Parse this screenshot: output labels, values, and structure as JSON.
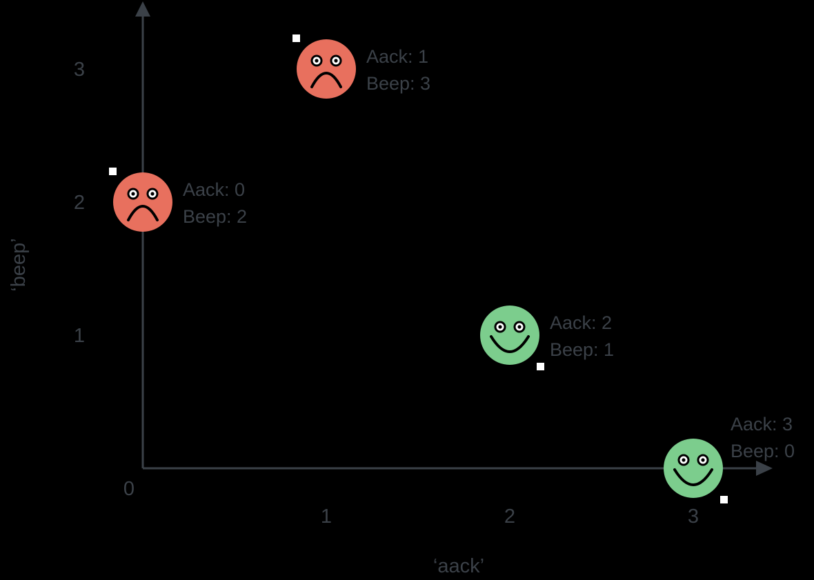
{
  "colors": {
    "background": "#000000",
    "axis": "#3b4148",
    "text": "#3b4148",
    "sad_fill": "#e8705e",
    "happy_fill": "#7ccd8d",
    "face_stroke": "#000000",
    "eye_white": "#ffffff",
    "marker": "#ffffff"
  },
  "chart_data": {
    "type": "scatter",
    "title": "",
    "xlabel": "‘aack’",
    "ylabel": "‘beep’",
    "xlim": [
      0,
      3.4
    ],
    "ylim": [
      0,
      3.5
    ],
    "x_ticks": [
      "1",
      "2",
      "3"
    ],
    "y_ticks": [
      "1",
      "2",
      "3"
    ],
    "origin_label": "0",
    "grid": false,
    "points": [
      {
        "x": 0,
        "y": 2,
        "mood": "sad",
        "icon": "sad-face-icon",
        "label_line1": "Aack: 0",
        "label_line2": "Beep: 2"
      },
      {
        "x": 1,
        "y": 3,
        "mood": "sad",
        "icon": "sad-face-icon",
        "label_line1": "Aack: 1",
        "label_line2": "Beep: 3"
      },
      {
        "x": 2,
        "y": 1,
        "mood": "happy",
        "icon": "happy-face-icon",
        "label_line1": "Aack: 2",
        "label_line2": "Beep: 1"
      },
      {
        "x": 3,
        "y": 0,
        "mood": "happy",
        "icon": "happy-face-icon",
        "label_line1": "Aack: 3",
        "label_line2": "Beep: 0"
      }
    ]
  }
}
